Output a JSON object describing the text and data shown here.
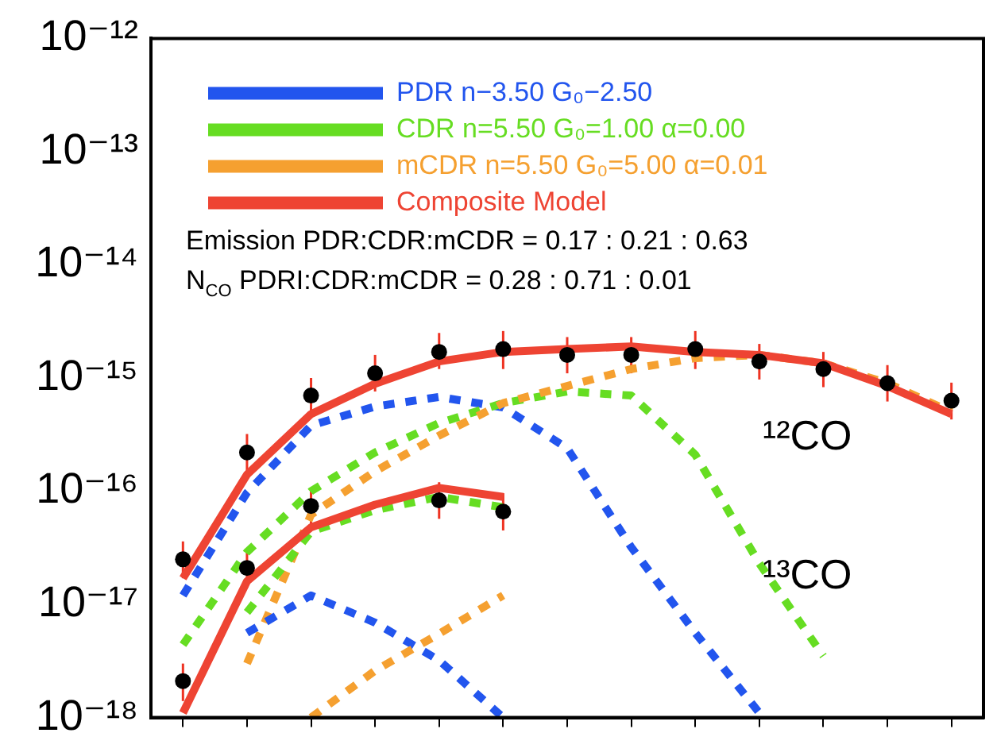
{
  "chart_data": {
    "type": "line",
    "categories": [
      null,
      null,
      null,
      null,
      null,
      null,
      null,
      null,
      null,
      null,
      null,
      null,
      null
    ],
    "series": [
      {
        "name": "PDR n−3.50 G₀−2.50",
        "type": "line",
        "line_style": "dashed",
        "color": "#2255ee",
        "values": [
          1.2e-17,
          9.7e-17,
          3.8e-16,
          5.6e-16,
          6.8e-16,
          5.5e-16,
          2.4e-16,
          3.2e-17,
          5.6e-18,
          1.1e-18,
          null,
          null,
          null
        ]
      },
      {
        "name": "CDR n=5.50 G₀=1.00 α=0.00",
        "type": "line",
        "line_style": "dashed",
        "color": "#66dd22",
        "values": [
          4.4e-18,
          2.9e-17,
          1e-16,
          2.2e-16,
          4e-16,
          6e-16,
          7.6e-16,
          7e-16,
          2.1e-16,
          2.3e-17,
          3.5e-18,
          null,
          null
        ]
      },
      {
        "name": "mCDR n=5.50 G₀=5.00 α=0.01",
        "type": "line",
        "line_style": "dashed",
        "color": "#f5a030",
        "values": [
          null,
          3e-18,
          6.2e-17,
          1.5e-16,
          3.1e-16,
          6e-16,
          8.5e-16,
          1.2e-15,
          1.5e-15,
          1.6e-15,
          1.35e-15,
          9e-16,
          5e-16
        ]
      },
      {
        "name": "Composite Model",
        "type": "line",
        "line_style": "solid",
        "color": "#ee4433",
        "values": [
          1.7e-17,
          1.4e-16,
          4.8e-16,
          8.9e-16,
          1.4e-15,
          1.7e-15,
          1.8e-15,
          1.9e-15,
          1.7e-15,
          1.6e-15,
          1.35e-15,
          8.5e-16,
          4.8e-16
        ]
      },
      {
        "type": "line",
        "line_style": "dashed",
        "color": "#2255ee",
        "values": [
          null,
          5.6e-18,
          1.2e-17,
          6.9e-18,
          3.2e-18,
          1e-18,
          null,
          null,
          null,
          null,
          null,
          null,
          null
        ]
      },
      {
        "type": "line",
        "line_style": "dashed",
        "color": "#66dd22",
        "values": [
          null,
          8.5e-18,
          4.4e-17,
          6.8e-17,
          8.9e-17,
          7.2e-17,
          null,
          null,
          null,
          null,
          null,
          null,
          null
        ]
      },
      {
        "type": "line",
        "line_style": "dashed",
        "color": "#f5a030",
        "values": [
          null,
          null,
          1e-18,
          2.6e-18,
          5.5e-18,
          1.2e-17,
          null,
          null,
          null,
          null,
          null,
          null,
          null
        ]
      },
      {
        "type": "line",
        "line_style": "solid",
        "color": "#ee4433",
        "values": [
          1.1e-18,
          1.6e-17,
          4.8e-17,
          7.6e-17,
          1.07e-16,
          8.9e-17,
          null,
          null,
          null,
          null,
          null,
          null,
          null
        ]
      },
      {
        "type": "scatter",
        "marker": "circle",
        "color": "#000000",
        "values": [
          2.5e-17,
          2.2e-16,
          7e-16,
          1.1e-15,
          1.7e-15,
          1.8e-15,
          1.6e-15,
          1.6e-15,
          1.8e-15,
          1.4e-15,
          1.2e-15,
          9e-16,
          6.3e-16
        ],
        "errors": [
          [
            1.7e-17,
            3.6e-17
          ],
          [
            1.5e-16,
            3.2e-16
          ],
          [
            4.8e-16,
            1e-15
          ],
          [
            7.6e-16,
            1.6e-15
          ],
          [
            1.2e-15,
            2.5e-15
          ],
          [
            1.2e-15,
            2.6e-15
          ],
          [
            1.1e-15,
            2.3e-15
          ],
          [
            1.1e-15,
            2.3e-15
          ],
          [
            1.2e-15,
            2.6e-15
          ],
          [
            9.7e-16,
            2e-15
          ],
          [
            8.3e-16,
            1.7e-15
          ],
          [
            6.2e-16,
            1.3e-15
          ],
          [
            4.3e-16,
            9.1e-16
          ]
        ]
      },
      {
        "type": "scatter",
        "marker": "circle",
        "color": "#000000",
        "values": [
          2.1e-18,
          2.1e-17,
          7.4e-17,
          null,
          8.3e-17,
          6.6e-17,
          null,
          null,
          null,
          null,
          null,
          null,
          null
        ],
        "errors": [
          [
            1.4e-18,
            3e-18
          ],
          [
            1.4e-17,
            3e-17
          ],
          [
            5.1e-17,
            1.07e-16
          ],
          null,
          [
            5.7e-17,
            1.2e-16
          ],
          [
            4.5e-17,
            9.6e-17
          ],
          null,
          null,
          null,
          null,
          null,
          null,
          null
        ]
      }
    ],
    "log": "y",
    "ylim": [
      1e-18,
      1e-12
    ],
    "yticks": [
      {
        "value": 1e-18,
        "label": "10⁻¹⁸"
      },
      {
        "value": 1e-17,
        "label": "10⁻¹⁷"
      },
      {
        "value": 1e-16,
        "label": "10⁻¹⁶"
      },
      {
        "value": 1e-15,
        "label": "10⁻¹⁵"
      },
      {
        "value": 1e-14,
        "label": "10⁻¹⁴"
      },
      {
        "value": 1e-13,
        "label": "10⁻¹³"
      },
      {
        "value": 1e-12,
        "label": "10⁻¹²"
      }
    ],
    "tick_labels": "y",
    "grid": false,
    "legend": "top left",
    "annotations": [
      "Emission PDR:CDR:mCDR = 0.17 : 0.21 : 0.63",
      "N$_{CO}$ PDRI:CDR:mCDR = 0.28 : 0.71 : 0.01",
      "¹²CO",
      "¹³CO"
    ]
  }
}
